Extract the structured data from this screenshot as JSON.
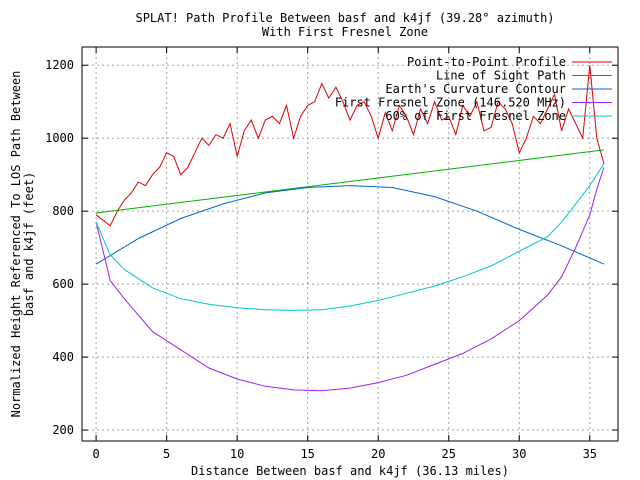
{
  "chart_data": {
    "type": "line",
    "title": "SPLAT! Path Profile Between basf and k4jf (39.28° azimuth)",
    "subtitle": "With First Fresnel Zone",
    "xlabel": "Distance Between basf and k4jf (36.13 miles)",
    "ylabel_line1": "Normalized Height Referenced To LOS Path Between",
    "ylabel_line2": "basf and k4jf (feet)",
    "xlim": [
      -1,
      37
    ],
    "ylim": [
      170,
      1250
    ],
    "x_ticks": [
      0,
      5,
      10,
      15,
      20,
      25,
      30,
      35
    ],
    "y_ticks": [
      200,
      400,
      600,
      800,
      1000,
      1200
    ],
    "grid": true,
    "legend_position": "top-right",
    "series": [
      {
        "name": "Point-to-Point Profile",
        "color": "#e00000",
        "x": [
          0,
          0.5,
          1,
          1.5,
          2,
          2.5,
          3,
          3.5,
          4,
          4.5,
          5,
          5.5,
          6,
          6.5,
          7,
          7.5,
          8,
          8.5,
          9,
          9.5,
          10,
          10.5,
          11,
          11.5,
          12,
          12.5,
          13,
          13.5,
          14,
          14.5,
          15,
          15.5,
          16,
          16.5,
          17,
          17.5,
          18,
          18.5,
          19,
          19.5,
          20,
          20.5,
          21,
          21.5,
          22,
          22.5,
          23,
          23.5,
          24,
          24.5,
          25,
          25.5,
          26,
          26.5,
          27,
          27.5,
          28,
          28.5,
          29,
          29.5,
          30,
          30.5,
          31,
          31.5,
          32,
          32.5,
          33,
          33.5,
          34,
          34.5,
          35,
          35.5,
          36
        ],
        "y": [
          790,
          775,
          760,
          800,
          830,
          850,
          880,
          870,
          900,
          920,
          960,
          950,
          900,
          920,
          960,
          1000,
          980,
          1010,
          1000,
          1040,
          950,
          1020,
          1050,
          1000,
          1050,
          1060,
          1040,
          1090,
          1000,
          1060,
          1090,
          1100,
          1150,
          1110,
          1140,
          1100,
          1050,
          1090,
          1100,
          1060,
          1000,
          1070,
          1020,
          1090,
          1060,
          1010,
          1080,
          1040,
          1100,
          1050,
          1060,
          1010,
          1090,
          1060,
          1100,
          1020,
          1030,
          1100,
          1080,
          1040,
          960,
          1000,
          1060,
          1040,
          1080,
          1120,
          1020,
          1080,
          1040,
          1000,
          1200,
          1000,
          930
        ]
      },
      {
        "name": "Line of Sight Path",
        "color": "#00b000",
        "x": [
          0,
          36
        ],
        "y": [
          795,
          968
        ]
      },
      {
        "name": "Earth's Curvature Contour",
        "color": "#0066cc",
        "x": [
          0,
          3,
          6,
          9,
          12,
          15,
          18,
          21,
          24,
          27,
          30,
          33,
          36
        ],
        "y": [
          655,
          725,
          780,
          820,
          850,
          865,
          870,
          865,
          840,
          800,
          750,
          705,
          655
        ]
      },
      {
        "name": "First Fresnel Zone (146.520 MHz)",
        "color": "#a020f0",
        "x": [
          0,
          1,
          2,
          4,
          6,
          8,
          10,
          12,
          14,
          16,
          18,
          20,
          22,
          24,
          26,
          28,
          30,
          32,
          33,
          34,
          35,
          35.5,
          36
        ],
        "y": [
          770,
          610,
          560,
          470,
          420,
          370,
          340,
          320,
          310,
          308,
          315,
          330,
          350,
          380,
          410,
          450,
          500,
          570,
          620,
          700,
          790,
          860,
          920
        ]
      },
      {
        "name": "60% of First Fresnel Zone",
        "color": "#00c8c8",
        "x": [
          0,
          1,
          2,
          4,
          6,
          8,
          10,
          12,
          14,
          16,
          18,
          20,
          22,
          24,
          26,
          28,
          30,
          32,
          33,
          34,
          35,
          35.5,
          36
        ],
        "y": [
          770,
          680,
          640,
          590,
          560,
          545,
          535,
          530,
          528,
          530,
          540,
          555,
          575,
          595,
          620,
          650,
          690,
          730,
          770,
          820,
          870,
          900,
          930
        ]
      }
    ]
  }
}
